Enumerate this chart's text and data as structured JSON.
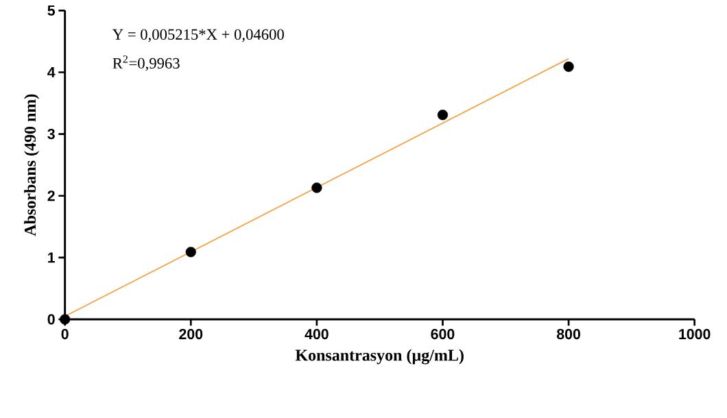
{
  "chart_data": {
    "type": "scatter",
    "xlabel": "Konsantrasyon (µg/mL)",
    "ylabel": "Absorbans (490 nm)",
    "annotations": [
      "Y = 0,005215*X + 0,04600",
      "R$^{2}$=0,9963"
    ],
    "xlim": [
      0,
      1000
    ],
    "xticks": [
      0,
      200,
      400,
      600,
      800,
      1000
    ],
    "ylim": [
      0,
      5
    ],
    "yticks": [
      0,
      1,
      2,
      3,
      4,
      5
    ],
    "marker": "circle",
    "series": [
      {
        "color": "#000000",
        "x": [
          0,
          200,
          400,
          600,
          800
        ],
        "values": [
          0,
          1.09,
          2.13,
          3.31,
          4.09
        ]
      },
      {
        "type": "line",
        "color": "#f5a142",
        "marker": "none",
        "line_style": "solid",
        "x": [
          0,
          800
        ],
        "values": [
          0.05,
          4.22
        ]
      }
    ]
  }
}
